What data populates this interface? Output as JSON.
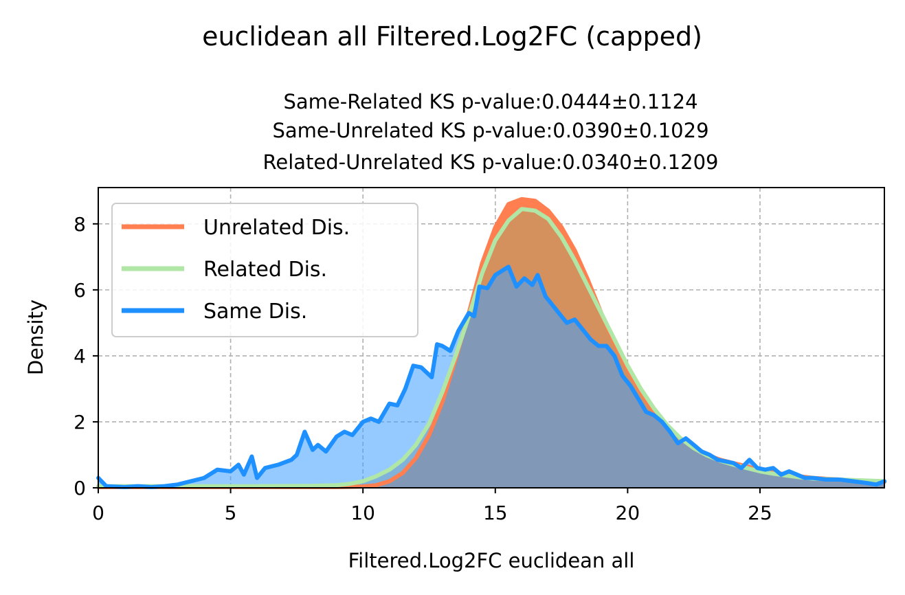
{
  "chart_data": {
    "type": "area",
    "title": "euclidean all Filtered.Log2FC (capped)",
    "subtitle_lines": [
      "Same-Related KS p-value:0.0444±0.1124",
      "Same-Unrelated KS p-value:0.0390±0.1029",
      "Related-Unrelated KS p-value:0.0340±0.1209"
    ],
    "xlabel": "Filtered.Log2FC euclidean all",
    "ylabel": "Density",
    "xlim": [
      0,
      29.7
    ],
    "ylim": [
      0,
      9.1
    ],
    "xticks": [
      0,
      5,
      10,
      15,
      20,
      25
    ],
    "yticks": [
      0,
      2,
      4,
      6,
      8
    ],
    "grid": true,
    "legend_position": "upper-left",
    "series": [
      {
        "name": "Unrelated Dis.",
        "color": "#FF7F50",
        "fill_color": "#FF7F50",
        "fill_opacity": 1.0,
        "points": [
          [
            0,
            0.02
          ],
          [
            2,
            0.02
          ],
          [
            4,
            0.02
          ],
          [
            6,
            0.02
          ],
          [
            8,
            0.02
          ],
          [
            9,
            0.02
          ],
          [
            9.5,
            0.03
          ],
          [
            10,
            0.04
          ],
          [
            10.5,
            0.08
          ],
          [
            11,
            0.2
          ],
          [
            11.5,
            0.45
          ],
          [
            12,
            0.9
          ],
          [
            12.5,
            1.6
          ],
          [
            13,
            2.6
          ],
          [
            13.5,
            3.9
          ],
          [
            14,
            5.3
          ],
          [
            14.5,
            6.8
          ],
          [
            15,
            7.9
          ],
          [
            15.5,
            8.6
          ],
          [
            16,
            8.75
          ],
          [
            16.5,
            8.7
          ],
          [
            17,
            8.4
          ],
          [
            17.5,
            7.9
          ],
          [
            18,
            7.2
          ],
          [
            18.5,
            6.3
          ],
          [
            19,
            5.3
          ],
          [
            19.5,
            4.4
          ],
          [
            20,
            3.6
          ],
          [
            20.5,
            2.9
          ],
          [
            21,
            2.3
          ],
          [
            21.5,
            1.85
          ],
          [
            22,
            1.5
          ],
          [
            22.5,
            1.2
          ],
          [
            23,
            1.0
          ],
          [
            23.5,
            0.85
          ],
          [
            24,
            0.75
          ],
          [
            24.5,
            0.65
          ],
          [
            25,
            0.55
          ],
          [
            25.5,
            0.47
          ],
          [
            26,
            0.4
          ],
          [
            26.5,
            0.35
          ],
          [
            27,
            0.3
          ],
          [
            28,
            0.25
          ],
          [
            29,
            0.2
          ],
          [
            29.7,
            0.18
          ]
        ]
      },
      {
        "name": "Related Dis.",
        "color": "#B0E6A6",
        "fill_color": "#B0A06A",
        "fill_opacity": 0.55,
        "points": [
          [
            0,
            0.05
          ],
          [
            2,
            0.05
          ],
          [
            4,
            0.05
          ],
          [
            6,
            0.05
          ],
          [
            8,
            0.06
          ],
          [
            9,
            0.08
          ],
          [
            9.5,
            0.12
          ],
          [
            10,
            0.2
          ],
          [
            10.5,
            0.35
          ],
          [
            11,
            0.55
          ],
          [
            11.5,
            0.85
          ],
          [
            12,
            1.3
          ],
          [
            12.5,
            1.95
          ],
          [
            13,
            2.9
          ],
          [
            13.5,
            4.0
          ],
          [
            14,
            5.2
          ],
          [
            14.5,
            6.5
          ],
          [
            15,
            7.5
          ],
          [
            15.5,
            8.1
          ],
          [
            16,
            8.45
          ],
          [
            16.5,
            8.4
          ],
          [
            17,
            8.15
          ],
          [
            17.5,
            7.6
          ],
          [
            18,
            6.9
          ],
          [
            18.5,
            6.1
          ],
          [
            19,
            5.3
          ],
          [
            19.5,
            4.5
          ],
          [
            20,
            3.7
          ],
          [
            20.5,
            3.0
          ],
          [
            21,
            2.4
          ],
          [
            21.5,
            1.9
          ],
          [
            22,
            1.5
          ],
          [
            22.5,
            1.2
          ],
          [
            23,
            0.98
          ],
          [
            23.5,
            0.82
          ],
          [
            24,
            0.7
          ],
          [
            24.5,
            0.6
          ],
          [
            25,
            0.5
          ],
          [
            25.5,
            0.43
          ],
          [
            26,
            0.37
          ],
          [
            26.5,
            0.32
          ],
          [
            27,
            0.28
          ],
          [
            28,
            0.25
          ],
          [
            29,
            0.22
          ],
          [
            29.7,
            0.2
          ]
        ]
      },
      {
        "name": "Same Dis.",
        "color": "#1E90FF",
        "fill_color": "#3C9EFF",
        "fill_opacity": 0.55,
        "points": [
          [
            0,
            0.3
          ],
          [
            0.3,
            0.05
          ],
          [
            1,
            0.02
          ],
          [
            1.5,
            0.05
          ],
          [
            2,
            0.02
          ],
          [
            2.5,
            0.05
          ],
          [
            3,
            0.1
          ],
          [
            3.5,
            0.2
          ],
          [
            4,
            0.3
          ],
          [
            4.5,
            0.55
          ],
          [
            5,
            0.5
          ],
          [
            5.3,
            0.7
          ],
          [
            5.5,
            0.4
          ],
          [
            5.8,
            0.95
          ],
          [
            6,
            0.3
          ],
          [
            6.3,
            0.6
          ],
          [
            6.8,
            0.7
          ],
          [
            7.3,
            0.85
          ],
          [
            7.5,
            1.0
          ],
          [
            7.8,
            1.7
          ],
          [
            8.1,
            1.15
          ],
          [
            8.3,
            1.3
          ],
          [
            8.6,
            1.1
          ],
          [
            9,
            1.55
          ],
          [
            9.3,
            1.7
          ],
          [
            9.6,
            1.6
          ],
          [
            10,
            2.0
          ],
          [
            10.3,
            2.1
          ],
          [
            10.6,
            2.0
          ],
          [
            11,
            2.55
          ],
          [
            11.3,
            2.5
          ],
          [
            11.6,
            3.0
          ],
          [
            11.9,
            3.7
          ],
          [
            12.2,
            3.65
          ],
          [
            12.6,
            3.35
          ],
          [
            12.8,
            4.35
          ],
          [
            13,
            4.3
          ],
          [
            13.3,
            4.15
          ],
          [
            13.6,
            4.75
          ],
          [
            14,
            5.3
          ],
          [
            14.2,
            5.2
          ],
          [
            14.4,
            6.1
          ],
          [
            14.7,
            6.05
          ],
          [
            15,
            6.45
          ],
          [
            15.3,
            6.6
          ],
          [
            15.5,
            6.7
          ],
          [
            15.8,
            6.1
          ],
          [
            16.1,
            6.35
          ],
          [
            16.4,
            6.15
          ],
          [
            16.6,
            6.45
          ],
          [
            16.9,
            5.8
          ],
          [
            17.1,
            5.6
          ],
          [
            17.4,
            5.3
          ],
          [
            17.7,
            5.0
          ],
          [
            18,
            5.1
          ],
          [
            18.3,
            4.8
          ],
          [
            18.6,
            4.5
          ],
          [
            18.9,
            4.3
          ],
          [
            19.2,
            4.3
          ],
          [
            19.5,
            4.0
          ],
          [
            19.8,
            3.4
          ],
          [
            20.1,
            3.1
          ],
          [
            20.4,
            2.7
          ],
          [
            20.7,
            2.3
          ],
          [
            21,
            2.2
          ],
          [
            21.3,
            2.0
          ],
          [
            21.6,
            1.7
          ],
          [
            21.9,
            1.35
          ],
          [
            22.2,
            1.5
          ],
          [
            22.5,
            1.3
          ],
          [
            22.8,
            1.1
          ],
          [
            23.1,
            1.0
          ],
          [
            23.4,
            0.85
          ],
          [
            23.7,
            0.8
          ],
          [
            24,
            0.75
          ],
          [
            24.3,
            0.6
          ],
          [
            24.6,
            0.85
          ],
          [
            24.9,
            0.6
          ],
          [
            25.2,
            0.55
          ],
          [
            25.5,
            0.6
          ],
          [
            25.8,
            0.4
          ],
          [
            26.1,
            0.5
          ],
          [
            26.4,
            0.4
          ],
          [
            26.7,
            0.3
          ],
          [
            27,
            0.3
          ],
          [
            27.5,
            0.25
          ],
          [
            28,
            0.25
          ],
          [
            28.5,
            0.2
          ],
          [
            29,
            0.15
          ],
          [
            29.4,
            0.1
          ],
          [
            29.7,
            0.2
          ]
        ]
      }
    ]
  }
}
